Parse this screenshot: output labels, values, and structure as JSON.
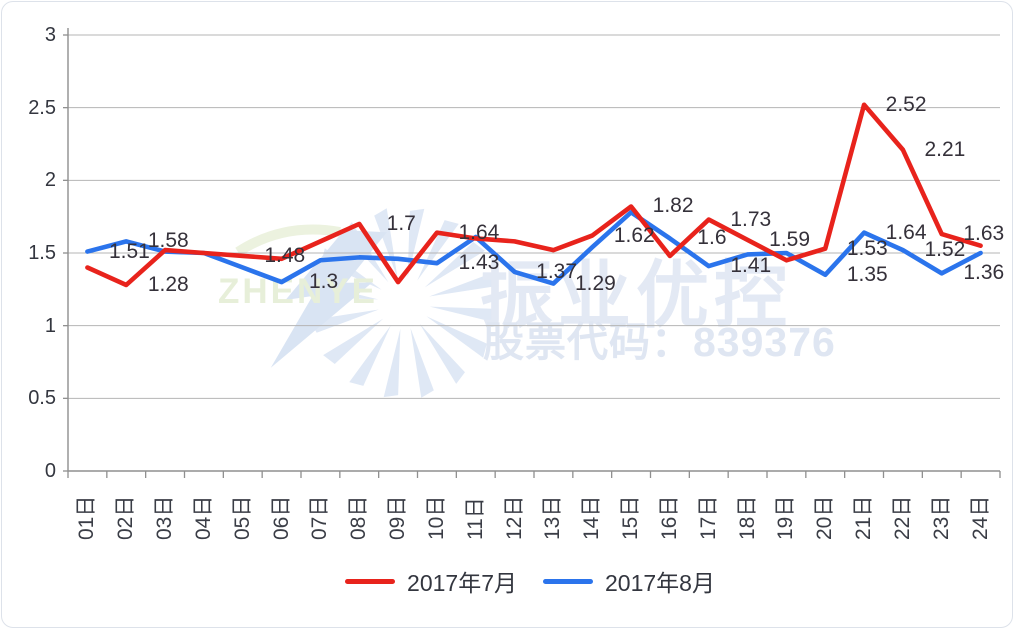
{
  "chart_data": {
    "type": "line",
    "title": "",
    "xlabel": "",
    "ylabel": "",
    "ylim": [
      0,
      3
    ],
    "grid": true,
    "legend_position": "bottom",
    "grid_color": "#b5b5b5",
    "axis_color": "#8f8f8f",
    "categories": [
      "01日",
      "02日",
      "03日",
      "04日",
      "05日",
      "06日",
      "07日",
      "08日",
      "09日",
      "10日",
      "11日",
      "12日",
      "13日",
      "14日",
      "15日",
      "16日",
      "17日",
      "18日",
      "19日",
      "20日",
      "21日",
      "22日",
      "23日",
      "24日"
    ],
    "y_ticks": [
      "0",
      "0.5",
      "1",
      "1.5",
      "2",
      "2.5",
      "3"
    ],
    "y_tick_values": [
      0,
      0.5,
      1,
      1.5,
      2,
      2.5,
      3
    ],
    "series": [
      {
        "name": "2017年7月",
        "color": "#e8231c",
        "values": [
          1.4,
          1.28,
          1.52,
          1.5,
          1.48,
          1.46,
          1.58,
          1.7,
          1.3,
          1.64,
          1.6,
          1.58,
          1.52,
          1.62,
          1.82,
          1.48,
          1.73,
          1.59,
          1.45,
          1.53,
          2.52,
          2.21,
          1.63,
          1.55
        ],
        "point_labels": [
          {
            "day": 2,
            "text": "1.28"
          },
          {
            "day": 5,
            "text": "1.48"
          },
          {
            "day": 8,
            "text": "1.7"
          },
          {
            "day": 10,
            "text": "1.64"
          },
          {
            "day": 14,
            "text": "1.62"
          },
          {
            "day": 15,
            "text": "1.82"
          },
          {
            "day": 17,
            "text": "1.73"
          },
          {
            "day": 18,
            "text": "1.59"
          },
          {
            "day": 20,
            "text": "1.53"
          },
          {
            "day": 21,
            "text": "2.52"
          },
          {
            "day": 22,
            "text": "2.21"
          },
          {
            "day": 23,
            "text": "1.63"
          }
        ]
      },
      {
        "name": "2017年8月",
        "color": "#2b74ec",
        "values": [
          1.51,
          1.58,
          1.51,
          1.5,
          1.4,
          1.3,
          1.45,
          1.47,
          1.46,
          1.43,
          1.61,
          1.37,
          1.29,
          1.54,
          1.78,
          1.6,
          1.41,
          1.49,
          1.5,
          1.35,
          1.64,
          1.52,
          1.36,
          1.5
        ],
        "point_labels": [
          {
            "day": 1,
            "text": "1.51"
          },
          {
            "day": 2,
            "text": "1.58"
          },
          {
            "day": 6,
            "text": "1.3"
          },
          {
            "day": 10,
            "text": "1.43"
          },
          {
            "day": 12,
            "text": "1.37"
          },
          {
            "day": 13,
            "text": "1.29"
          },
          {
            "day": 16,
            "text": "1.6"
          },
          {
            "day": 17,
            "text": "1.41"
          },
          {
            "day": 20,
            "text": "1.35"
          },
          {
            "day": 21,
            "text": "1.64"
          },
          {
            "day": 22,
            "text": "1.52"
          },
          {
            "day": 23,
            "text": "1.36"
          }
        ]
      }
    ]
  },
  "watermark": {
    "logo_text": "ZHENYE",
    "company_text": "振业优控",
    "stock_text": "股票代码：839376",
    "watermark_color": "#e3e9f4",
    "logo_color": "#dfe8f5",
    "logo_text_color": "#e7efd9"
  }
}
